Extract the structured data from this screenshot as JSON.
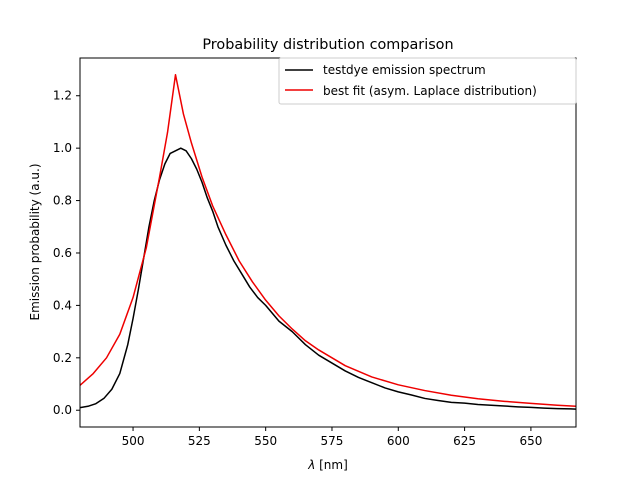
{
  "chart_data": {
    "type": "line",
    "title": "Probability distribution comparison",
    "xlabel_symbol": "λ",
    "xlabel_unit": " [nm]",
    "ylabel": "Emission probability (a.u.)",
    "xlim": [
      480,
      667
    ],
    "ylim": [
      -0.064,
      1.344
    ],
    "xticks": [
      500,
      525,
      550,
      575,
      600,
      625,
      650
    ],
    "xtick_labels": [
      "500",
      "525",
      "550",
      "575",
      "600",
      "625",
      "650"
    ],
    "yticks": [
      0.0,
      0.2,
      0.4,
      0.6,
      0.8,
      1.0,
      1.2
    ],
    "ytick_labels": [
      "0.0",
      "0.2",
      "0.4",
      "0.6",
      "0.8",
      "1.0",
      "1.2"
    ],
    "grid": false,
    "legend_position": "top-right",
    "series": [
      {
        "name": "testdye emission spectrum",
        "color": "#000000",
        "x": [
          480,
          483,
          486,
          489,
          492,
          495,
          498,
          500,
          502,
          504,
          506,
          508,
          510,
          512,
          514,
          516,
          518,
          520,
          522,
          524,
          526,
          528,
          530,
          532,
          535,
          538,
          541,
          544,
          547,
          550,
          555,
          560,
          565,
          570,
          575,
          580,
          585,
          590,
          595,
          600,
          605,
          610,
          615,
          620,
          625,
          630,
          635,
          640,
          645,
          650,
          655,
          660,
          665,
          667
        ],
        "y": [
          0.01,
          0.015,
          0.025,
          0.045,
          0.08,
          0.14,
          0.25,
          0.35,
          0.46,
          0.58,
          0.7,
          0.8,
          0.88,
          0.94,
          0.98,
          0.99,
          1.0,
          0.99,
          0.96,
          0.92,
          0.87,
          0.81,
          0.76,
          0.7,
          0.63,
          0.57,
          0.52,
          0.47,
          0.43,
          0.4,
          0.34,
          0.3,
          0.25,
          0.21,
          0.18,
          0.15,
          0.125,
          0.105,
          0.085,
          0.07,
          0.058,
          0.045,
          0.037,
          0.03,
          0.027,
          0.022,
          0.019,
          0.016,
          0.013,
          0.011,
          0.008,
          0.006,
          0.005,
          0.004
        ]
      },
      {
        "name": "best fit (asym. Laplace distribution)",
        "color": "#ee0000",
        "x": [
          480,
          485,
          490,
          495,
          500,
          505,
          510,
          513,
          516,
          519,
          522,
          526,
          530,
          535,
          540,
          545,
          550,
          555,
          560,
          565,
          570,
          575,
          580,
          590,
          600,
          610,
          620,
          630,
          640,
          650,
          660,
          667
        ],
        "y": [
          0.095,
          0.14,
          0.2,
          0.29,
          0.43,
          0.62,
          0.89,
          1.06,
          1.28,
          1.13,
          1.02,
          0.89,
          0.78,
          0.67,
          0.57,
          0.49,
          0.42,
          0.36,
          0.31,
          0.265,
          0.23,
          0.2,
          0.17,
          0.127,
          0.097,
          0.075,
          0.057,
          0.044,
          0.034,
          0.026,
          0.019,
          0.015
        ]
      }
    ]
  }
}
